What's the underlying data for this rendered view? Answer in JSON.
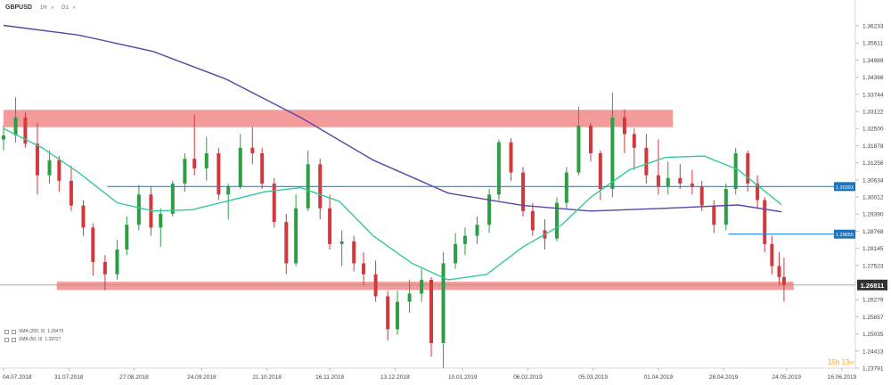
{
  "header": {
    "symbol": "GBPUSD",
    "timeframe": "1H",
    "period": "D1"
  },
  "legend": {
    "sma200_label": "SMA (200, 0)",
    "sma200_value": "1.29470",
    "sma50_label": "SMA (50, 0)",
    "sma50_value": "1.29727"
  },
  "timer": {
    "hours": "15h",
    "minutes": "13",
    "unit": "m"
  },
  "colors": {
    "bull": "#2e9e45",
    "bear": "#d0393e",
    "sma200": "#5b45a6",
    "sma50": "#33c99a",
    "zone": "#f08a88",
    "hline": "#1e86d6",
    "badge": "#1f73b8",
    "price_badge": "#333333"
  },
  "chart_data": {
    "type": "candlestick",
    "instrument": "GBPUSD",
    "timeframe": "D1",
    "current_price": "1.26811",
    "y_ticks": [
      "1.36233",
      "1.35611",
      "1.34989",
      "1.34366",
      "1.33744",
      "1.33122",
      "1.32500",
      "1.31878",
      "1.31256",
      "1.30634",
      "1.30012",
      "1.29390",
      "1.28768",
      "1.28145",
      "1.27523",
      "1.26901",
      "1.26279",
      "1.25657",
      "1.25035",
      "1.24413",
      "1.23791"
    ],
    "x_ticks": [
      "04.07.2018",
      "31.07.2018",
      "27.08.2018",
      "24.09.2018",
      "21.10.2018",
      "16.11.2018",
      "13.12.2018",
      "10.01.2019",
      "06.02.2019",
      "05.03.2019",
      "01.04.2019",
      "28.04.2019",
      "24.05.2019",
      "16.06.2019"
    ],
    "ylim": [
      1.2379,
      1.3665
    ],
    "x_range": [
      "2018-07-04",
      "2019-06-16"
    ],
    "resistance_zone": {
      "from": 1.3255,
      "to": 1.3318,
      "start": "2018-07-04",
      "end": "2019-04-07"
    },
    "support_zone": {
      "from": 1.2663,
      "to": 1.2693,
      "start": "2018-07-26",
      "end": "2019-05-27"
    },
    "horizontal_lines": [
      {
        "level": 1.3039,
        "label": "1.30393",
        "start": "2018-08-16"
      },
      {
        "level": 1.2866,
        "label": "1.28655",
        "start": "2019-04-30"
      }
    ],
    "series": [
      {
        "name": "SMA (200, 0)",
        "x": [
          "2018-07-04",
          "2018-08-04",
          "2018-09-04",
          "2018-10-04",
          "2018-11-04",
          "2018-12-04",
          "2019-01-04",
          "2019-02-04",
          "2019-03-04",
          "2019-04-04",
          "2019-05-04",
          "2019-05-22"
        ],
        "y": [
          1.3625,
          1.359,
          1.353,
          1.343,
          1.329,
          1.3135,
          1.3015,
          1.297,
          1.295,
          1.296,
          1.2972,
          1.2947
        ]
      },
      {
        "name": "SMA (50, 0)",
        "x": [
          "2018-07-04",
          "2018-07-20",
          "2018-08-04",
          "2018-08-20",
          "2018-09-04",
          "2018-09-20",
          "2018-10-04",
          "2018-10-20",
          "2018-11-04",
          "2018-11-20",
          "2018-12-04",
          "2018-12-20",
          "2019-01-04",
          "2019-01-20",
          "2019-02-04",
          "2019-02-20",
          "2019-03-04",
          "2019-03-20",
          "2019-04-04",
          "2019-04-20",
          "2019-05-04",
          "2019-05-22"
        ],
        "y": [
          1.325,
          1.318,
          1.309,
          1.298,
          1.295,
          1.2955,
          1.2985,
          1.302,
          1.3035,
          1.2985,
          1.286,
          1.276,
          1.27,
          1.272,
          1.282,
          1.29,
          1.3,
          1.31,
          1.3145,
          1.315,
          1.31,
          1.2973
        ]
      }
    ],
    "candles": [
      {
        "d": "2018-07-04",
        "o": 1.321,
        "h": 1.326,
        "l": 1.317,
        "c": 1.3225
      },
      {
        "d": "2018-07-09",
        "o": 1.3225,
        "h": 1.3363,
        "l": 1.32,
        "c": 1.329
      },
      {
        "d": "2018-07-13",
        "o": 1.329,
        "h": 1.331,
        "l": 1.318,
        "c": 1.3195
      },
      {
        "d": "2018-07-18",
        "o": 1.3195,
        "h": 1.327,
        "l": 1.301,
        "c": 1.308
      },
      {
        "d": "2018-07-23",
        "o": 1.308,
        "h": 1.317,
        "l": 1.305,
        "c": 1.3135
      },
      {
        "d": "2018-07-27",
        "o": 1.3135,
        "h": 1.315,
        "l": 1.302,
        "c": 1.306
      },
      {
        "d": "2018-08-01",
        "o": 1.306,
        "h": 1.3115,
        "l": 1.295,
        "c": 1.297
      },
      {
        "d": "2018-08-06",
        "o": 1.297,
        "h": 1.299,
        "l": 1.286,
        "c": 1.289
      },
      {
        "d": "2018-08-10",
        "o": 1.289,
        "h": 1.2905,
        "l": 1.2715,
        "c": 1.2765
      },
      {
        "d": "2018-08-15",
        "o": 1.2765,
        "h": 1.279,
        "l": 1.2662,
        "c": 1.272
      },
      {
        "d": "2018-08-20",
        "o": 1.272,
        "h": 1.2845,
        "l": 1.27,
        "c": 1.281
      },
      {
        "d": "2018-08-24",
        "o": 1.281,
        "h": 1.293,
        "l": 1.279,
        "c": 1.29
      },
      {
        "d": "2018-08-29",
        "o": 1.29,
        "h": 1.3045,
        "l": 1.288,
        "c": 1.301
      },
      {
        "d": "2018-09-03",
        "o": 1.301,
        "h": 1.304,
        "l": 1.286,
        "c": 1.289
      },
      {
        "d": "2018-09-07",
        "o": 1.289,
        "h": 1.296,
        "l": 1.282,
        "c": 1.294
      },
      {
        "d": "2018-09-12",
        "o": 1.294,
        "h": 1.306,
        "l": 1.293,
        "c": 1.305
      },
      {
        "d": "2018-09-17",
        "o": 1.305,
        "h": 1.316,
        "l": 1.302,
        "c": 1.314
      },
      {
        "d": "2018-09-21",
        "o": 1.314,
        "h": 1.33,
        "l": 1.308,
        "c": 1.3105
      },
      {
        "d": "2018-09-26",
        "o": 1.3105,
        "h": 1.322,
        "l": 1.306,
        "c": 1.316
      },
      {
        "d": "2018-10-01",
        "o": 1.316,
        "h": 1.318,
        "l": 1.299,
        "c": 1.301
      },
      {
        "d": "2018-10-05",
        "o": 1.301,
        "h": 1.305,
        "l": 1.292,
        "c": 1.304
      },
      {
        "d": "2018-10-10",
        "o": 1.304,
        "h": 1.323,
        "l": 1.303,
        "c": 1.318
      },
      {
        "d": "2018-10-15",
        "o": 1.318,
        "h": 1.3255,
        "l": 1.312,
        "c": 1.316
      },
      {
        "d": "2018-10-19",
        "o": 1.316,
        "h": 1.318,
        "l": 1.303,
        "c": 1.305
      },
      {
        "d": "2018-10-24",
        "o": 1.305,
        "h": 1.307,
        "l": 1.289,
        "c": 1.291
      },
      {
        "d": "2018-10-29",
        "o": 1.291,
        "h": 1.294,
        "l": 1.272,
        "c": 1.276
      },
      {
        "d": "2018-11-02",
        "o": 1.276,
        "h": 1.301,
        "l": 1.275,
        "c": 1.296
      },
      {
        "d": "2018-11-07",
        "o": 1.296,
        "h": 1.317,
        "l": 1.295,
        "c": 1.312
      },
      {
        "d": "2018-11-12",
        "o": 1.312,
        "h": 1.314,
        "l": 1.292,
        "c": 1.296
      },
      {
        "d": "2018-11-16",
        "o": 1.296,
        "h": 1.301,
        "l": 1.281,
        "c": 1.283
      },
      {
        "d": "2018-11-21",
        "o": 1.283,
        "h": 1.288,
        "l": 1.275,
        "c": 1.284
      },
      {
        "d": "2018-11-26",
        "o": 1.284,
        "h": 1.286,
        "l": 1.273,
        "c": 1.276
      },
      {
        "d": "2018-11-30",
        "o": 1.276,
        "h": 1.28,
        "l": 1.268,
        "c": 1.272
      },
      {
        "d": "2018-12-05",
        "o": 1.272,
        "h": 1.277,
        "l": 1.262,
        "c": 1.264
      },
      {
        "d": "2018-12-10",
        "o": 1.264,
        "h": 1.266,
        "l": 1.248,
        "c": 1.252
      },
      {
        "d": "2018-12-14",
        "o": 1.252,
        "h": 1.266,
        "l": 1.25,
        "c": 1.262
      },
      {
        "d": "2018-12-19",
        "o": 1.262,
        "h": 1.27,
        "l": 1.258,
        "c": 1.265
      },
      {
        "d": "2018-12-24",
        "o": 1.265,
        "h": 1.274,
        "l": 1.262,
        "c": 1.27
      },
      {
        "d": "2018-12-28",
        "o": 1.27,
        "h": 1.271,
        "l": 1.242,
        "c": 1.247
      },
      {
        "d": "2019-01-02",
        "o": 1.247,
        "h": 1.28,
        "l": 1.238,
        "c": 1.276
      },
      {
        "d": "2019-01-07",
        "o": 1.276,
        "h": 1.287,
        "l": 1.274,
        "c": 1.283
      },
      {
        "d": "2019-01-11",
        "o": 1.283,
        "h": 1.289,
        "l": 1.279,
        "c": 1.286
      },
      {
        "d": "2019-01-16",
        "o": 1.286,
        "h": 1.293,
        "l": 1.283,
        "c": 1.29
      },
      {
        "d": "2019-01-21",
        "o": 1.29,
        "h": 1.303,
        "l": 1.287,
        "c": 1.301
      },
      {
        "d": "2019-01-25",
        "o": 1.301,
        "h": 1.321,
        "l": 1.299,
        "c": 1.32
      },
      {
        "d": "2019-01-30",
        "o": 1.32,
        "h": 1.3215,
        "l": 1.306,
        "c": 1.309
      },
      {
        "d": "2019-02-04",
        "o": 1.309,
        "h": 1.311,
        "l": 1.293,
        "c": 1.295
      },
      {
        "d": "2019-02-08",
        "o": 1.295,
        "h": 1.298,
        "l": 1.286,
        "c": 1.288
      },
      {
        "d": "2019-02-13",
        "o": 1.288,
        "h": 1.292,
        "l": 1.281,
        "c": 1.285
      },
      {
        "d": "2019-02-18",
        "o": 1.285,
        "h": 1.3,
        "l": 1.284,
        "c": 1.298
      },
      {
        "d": "2019-02-22",
        "o": 1.298,
        "h": 1.311,
        "l": 1.296,
        "c": 1.309
      },
      {
        "d": "2019-02-27",
        "o": 1.309,
        "h": 1.333,
        "l": 1.308,
        "c": 1.326
      },
      {
        "d": "2019-03-04",
        "o": 1.326,
        "h": 1.327,
        "l": 1.313,
        "c": 1.316
      },
      {
        "d": "2019-03-08",
        "o": 1.316,
        "h": 1.317,
        "l": 1.299,
        "c": 1.303
      },
      {
        "d": "2019-03-13",
        "o": 1.303,
        "h": 1.338,
        "l": 1.3,
        "c": 1.329
      },
      {
        "d": "2019-03-18",
        "o": 1.329,
        "h": 1.332,
        "l": 1.316,
        "c": 1.323
      },
      {
        "d": "2019-03-22",
        "o": 1.323,
        "h": 1.325,
        "l": 1.31,
        "c": 1.318
      },
      {
        "d": "2019-03-27",
        "o": 1.318,
        "h": 1.323,
        "l": 1.305,
        "c": 1.308
      },
      {
        "d": "2019-04-01",
        "o": 1.308,
        "h": 1.321,
        "l": 1.301,
        "c": 1.304
      },
      {
        "d": "2019-04-05",
        "o": 1.304,
        "h": 1.313,
        "l": 1.301,
        "c": 1.307
      },
      {
        "d": "2019-04-10",
        "o": 1.307,
        "h": 1.312,
        "l": 1.303,
        "c": 1.305
      },
      {
        "d": "2019-04-15",
        "o": 1.305,
        "h": 1.31,
        "l": 1.301,
        "c": 1.304
      },
      {
        "d": "2019-04-19",
        "o": 1.304,
        "h": 1.306,
        "l": 1.295,
        "c": 1.297
      },
      {
        "d": "2019-04-24",
        "o": 1.297,
        "h": 1.299,
        "l": 1.287,
        "c": 1.29
      },
      {
        "d": "2019-04-29",
        "o": 1.29,
        "h": 1.305,
        "l": 1.288,
        "c": 1.303
      },
      {
        "d": "2019-05-03",
        "o": 1.303,
        "h": 1.318,
        "l": 1.301,
        "c": 1.316
      },
      {
        "d": "2019-05-08",
        "o": 1.316,
        "h": 1.317,
        "l": 1.302,
        "c": 1.305
      },
      {
        "d": "2019-05-12",
        "o": 1.305,
        "h": 1.308,
        "l": 1.296,
        "c": 1.299
      },
      {
        "d": "2019-05-15",
        "o": 1.299,
        "h": 1.3,
        "l": 1.28,
        "c": 1.283
      },
      {
        "d": "2019-05-18",
        "o": 1.283,
        "h": 1.286,
        "l": 1.272,
        "c": 1.275
      },
      {
        "d": "2019-05-21",
        "o": 1.275,
        "h": 1.28,
        "l": 1.268,
        "c": 1.271
      },
      {
        "d": "2019-05-23",
        "o": 1.271,
        "h": 1.278,
        "l": 1.262,
        "c": 1.2681
      }
    ]
  }
}
